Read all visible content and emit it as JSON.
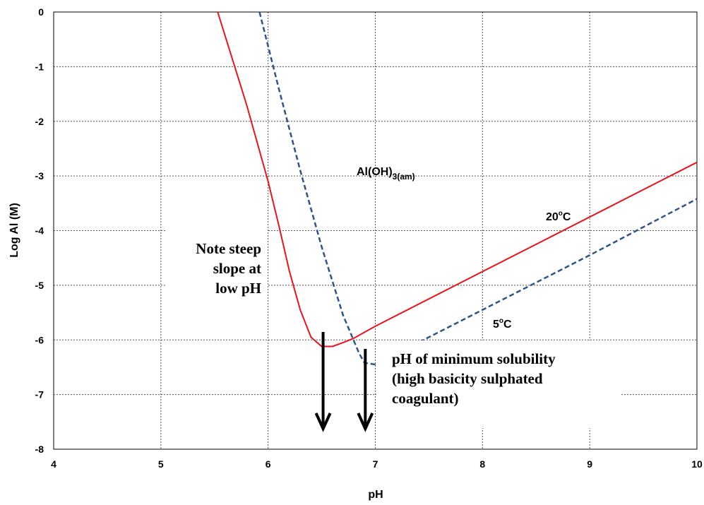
{
  "chart_data": {
    "type": "line",
    "title": "",
    "xlabel": "pH",
    "ylabel": "Log Al (M)",
    "xlim": [
      4,
      10
    ],
    "ylim": [
      -8,
      0
    ],
    "x_ticks": [
      "4",
      "5",
      "6",
      "7",
      "8",
      "9",
      "10"
    ],
    "y_ticks": [
      "0",
      "-1",
      "-2",
      "-3",
      "-4",
      "-5",
      "-6",
      "-7",
      "-8"
    ],
    "grid": true,
    "series": [
      {
        "name": "20°C",
        "style": "solid",
        "color": "#e8141b",
        "points": [
          [
            5.53,
            0
          ],
          [
            5.8,
            -1.7
          ],
          [
            6.0,
            -3.1
          ],
          [
            6.1,
            -3.9
          ],
          [
            6.2,
            -4.75
          ],
          [
            6.3,
            -5.45
          ],
          [
            6.4,
            -5.95
          ],
          [
            6.5,
            -6.12
          ],
          [
            6.6,
            -6.12
          ],
          [
            6.7,
            -6.05
          ],
          [
            6.8,
            -5.97
          ],
          [
            7.0,
            -5.75
          ],
          [
            8.0,
            -4.75
          ],
          [
            9.0,
            -3.75
          ],
          [
            10.0,
            -2.75
          ]
        ]
      },
      {
        "name": "5°C",
        "style": "dashed",
        "color": "#2e5488",
        "points": [
          [
            5.92,
            0
          ],
          [
            6.1,
            -1.4
          ],
          [
            6.3,
            -2.9
          ],
          [
            6.5,
            -4.3
          ],
          [
            6.7,
            -5.55
          ],
          [
            6.85,
            -6.25
          ],
          [
            6.9,
            -6.42
          ],
          [
            7.0,
            -6.45
          ],
          [
            7.5,
            -5.95
          ],
          [
            8.0,
            -5.45
          ],
          [
            9.0,
            -4.45
          ],
          [
            10.0,
            -3.42
          ]
        ]
      }
    ],
    "annotations": {
      "region_label_main": "Al(OH)",
      "region_label_sub": "3(am)",
      "label_20c_num": "20",
      "label_20c_sup": "o",
      "label_20c_unit": "C",
      "label_5c_num": "5",
      "label_5c_sup": "o",
      "label_5c_unit": "C",
      "note_steep_lines": [
        "Note steep",
        "slope at",
        "low pH"
      ],
      "note_min_lines": [
        "pH of minimum solubility",
        "(high basicity sulphated",
        "coagulant)"
      ],
      "arrows_at_ph": [
        6.5,
        6.9
      ]
    }
  },
  "colors": {
    "red_curve": "#e8141b",
    "blue_curve": "#2e5488",
    "grid": "#555555",
    "arrow": "#000000"
  }
}
